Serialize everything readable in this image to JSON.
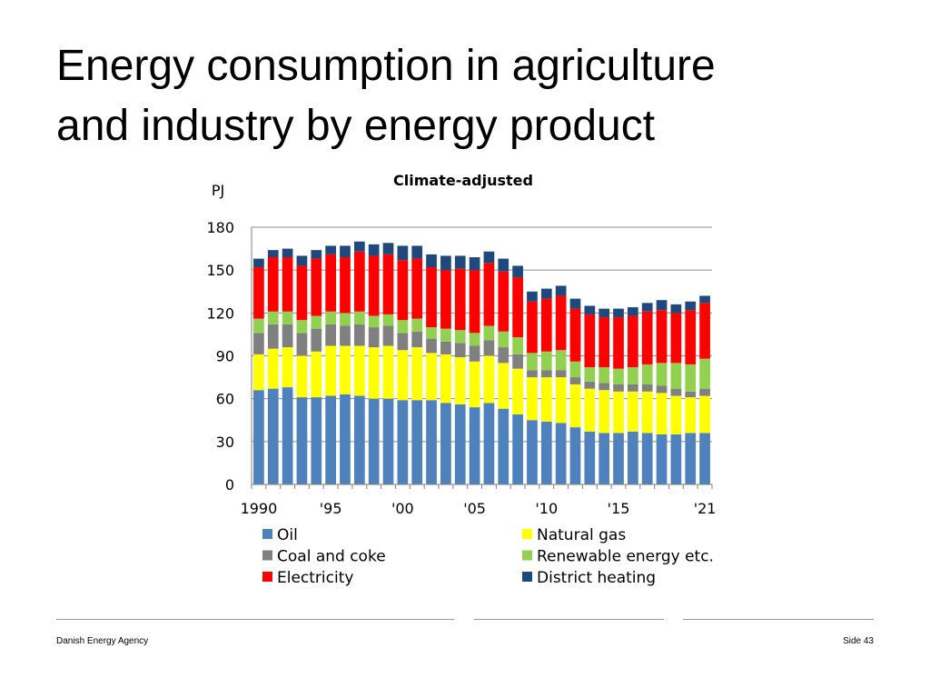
{
  "slide": {
    "title_line1": "Energy consumption in agriculture",
    "title_line2": "and industry by energy product",
    "footer_left": "Danish Energy Agency",
    "footer_right": "Side 43"
  },
  "chart_data": {
    "type": "bar",
    "stacked": true,
    "title": "Climate-adjusted",
    "ylabel": "PJ",
    "ylim": [
      0,
      180
    ],
    "yticks": [
      0,
      30,
      60,
      90,
      120,
      150,
      180
    ],
    "grid": true,
    "legend_position": "bottom",
    "categories": [
      "1990",
      "1991",
      "1992",
      "1993",
      "1994",
      "1995",
      "1996",
      "1997",
      "1998",
      "1999",
      "2000",
      "2001",
      "2002",
      "2003",
      "2004",
      "2005",
      "2006",
      "2007",
      "2008",
      "2009",
      "2010",
      "2011",
      "2012",
      "2013",
      "2014",
      "2015",
      "2016",
      "2017",
      "2018",
      "2019",
      "2020",
      "2021"
    ],
    "tick_labels": [
      {
        "index": 0,
        "label": "1990"
      },
      {
        "index": 5,
        "label": "'95"
      },
      {
        "index": 10,
        "label": "'00"
      },
      {
        "index": 15,
        "label": "'05"
      },
      {
        "index": 20,
        "label": "'10"
      },
      {
        "index": 25,
        "label": "'15"
      },
      {
        "index": 31,
        "label": "'21"
      }
    ],
    "series": [
      {
        "name": "Oil",
        "color": "#4f81bd",
        "values": [
          66,
          67,
          68,
          61,
          61,
          62,
          63,
          62,
          60,
          60,
          59,
          59,
          59,
          57,
          56,
          54,
          57,
          53,
          49,
          45,
          44,
          43,
          40,
          37,
          36,
          36,
          37,
          36,
          35,
          35,
          36,
          36
        ]
      },
      {
        "name": "Natural gas",
        "color": "#ffff00",
        "values": [
          25,
          28,
          28,
          29,
          32,
          35,
          34,
          35,
          36,
          37,
          35,
          37,
          33,
          34,
          33,
          32,
          33,
          32,
          32,
          30,
          31,
          32,
          30,
          30,
          30,
          29,
          28,
          29,
          29,
          27,
          25,
          26
        ]
      },
      {
        "name": "Coal and coke",
        "color": "#808080",
        "values": [
          15,
          17,
          16,
          16,
          16,
          15,
          14,
          15,
          14,
          14,
          12,
          11,
          10,
          9,
          10,
          11,
          11,
          11,
          10,
          5,
          5,
          5,
          5,
          5,
          5,
          5,
          5,
          5,
          5,
          5,
          4,
          5
        ]
      },
      {
        "name": "Renewable energy etc.",
        "color": "#92d050",
        "values": [
          10,
          9,
          9,
          9,
          9,
          9,
          9,
          9,
          8,
          8,
          9,
          9,
          8,
          9,
          9,
          9,
          10,
          11,
          12,
          12,
          13,
          14,
          11,
          10,
          11,
          11,
          12,
          14,
          16,
          18,
          19,
          21
        ]
      },
      {
        "name": "Electricity",
        "color": "#ff0000",
        "values": [
          36,
          38,
          38,
          38,
          40,
          40,
          39,
          42,
          42,
          42,
          42,
          42,
          42,
          41,
          43,
          44,
          44,
          42,
          42,
          36,
          37,
          38,
          37,
          37,
          35,
          36,
          36,
          37,
          37,
          35,
          38,
          39
        ]
      },
      {
        "name": "District heating",
        "color": "#1f497d",
        "values": [
          6,
          5,
          6,
          7,
          6,
          6,
          8,
          7,
          8,
          8,
          10,
          9,
          9,
          10,
          9,
          9,
          8,
          9,
          8,
          7,
          7,
          7,
          7,
          6,
          6,
          6,
          6,
          6,
          7,
          6,
          6,
          5
        ]
      }
    ]
  }
}
